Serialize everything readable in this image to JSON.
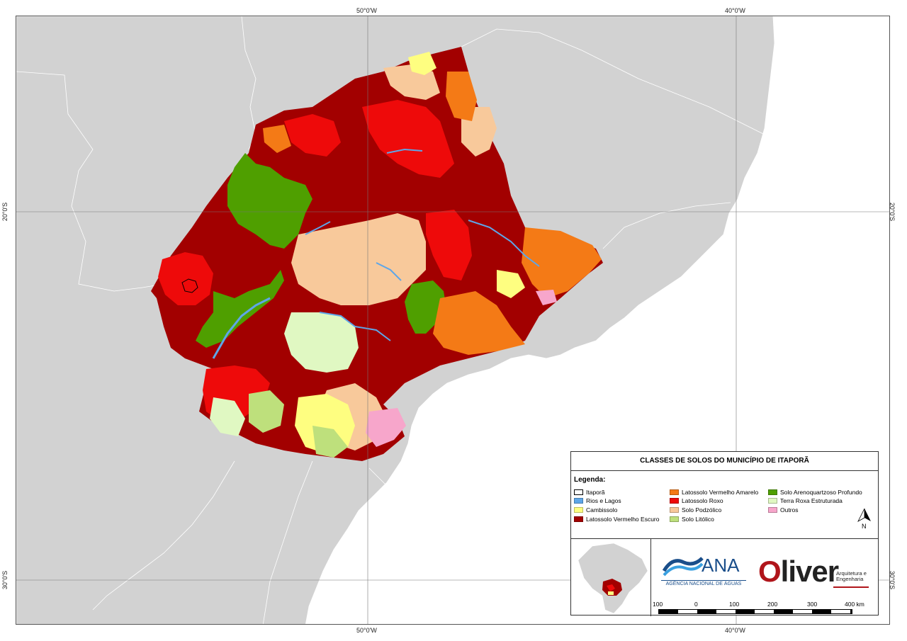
{
  "map": {
    "title": "CLASSES DE SOLOS DO MUNICÍPIO DE ITAPORÃ",
    "graticule": {
      "top_labels": [
        "50°0'W",
        "40°0'W"
      ],
      "bottom_labels": [
        "50°0'W",
        "40°0'W"
      ],
      "left_labels": [
        "20°0'S",
        "30°0'S"
      ],
      "right_labels": [
        "20°0'S",
        "30°0'S"
      ]
    },
    "colors": {
      "background_land": "#d2d2d2",
      "sea": "#ffffff"
    }
  },
  "legend": {
    "heading": "Legenda:",
    "items": [
      {
        "label": "Itaporã",
        "color": "#ffffff",
        "border": "#000000"
      },
      {
        "label": "Rios e Lagos",
        "color": "#5ea6e8"
      },
      {
        "label": "Cambissolo",
        "color": "#fefe80"
      },
      {
        "label": "Latossolo Vermelho Escuro",
        "color": "#a20000"
      },
      {
        "label": "Latossolo Vermelho Amarelo",
        "color": "#f47a16"
      },
      {
        "label": "Latossolo Roxo",
        "color": "#ee0a0a"
      },
      {
        "label": "Solo Podzólico",
        "color": "#f8c99b"
      },
      {
        "label": "Solo Litólico",
        "color": "#bee07c"
      },
      {
        "label": "Solo Arenoquartzoso Profundo",
        "color": "#4f9f00"
      },
      {
        "label": "Terra Roxa Estruturada",
        "color": "#e0f8c2"
      },
      {
        "label": "Outros",
        "color": "#f7a6cb"
      }
    ],
    "north_label": "N"
  },
  "logos": {
    "ana_name": "ANA",
    "ana_subtitle": "AGÊNCIA NACIONAL DE ÁGUAS",
    "oliver_name": "liver",
    "oliver_initial": "O",
    "oliver_subtitle_1": "Arquitetura e",
    "oliver_subtitle_2": "Engenharia"
  },
  "scale_bar": {
    "labels": [
      "100",
      "0",
      "100",
      "200",
      "300",
      "400 km"
    ]
  }
}
